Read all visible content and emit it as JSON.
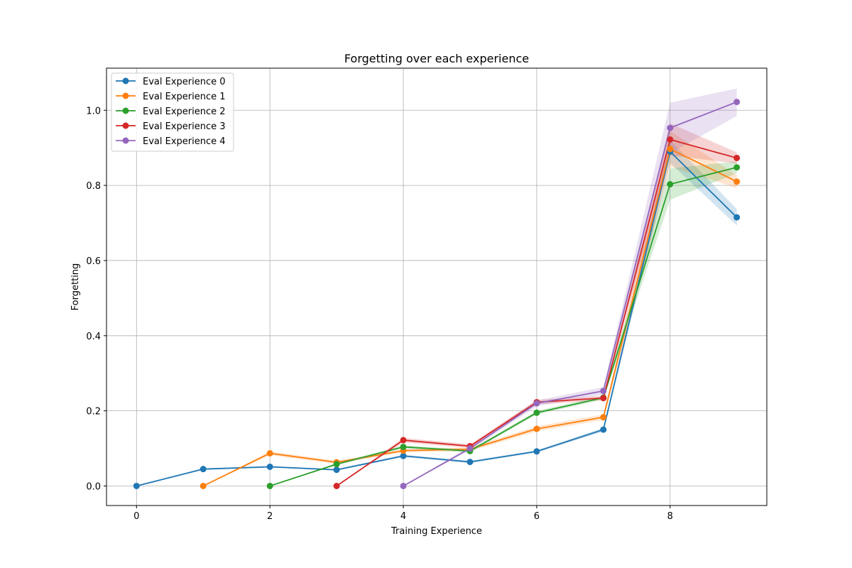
{
  "chart_data": {
    "type": "line",
    "title": "Forgetting over each experience",
    "xlabel": "Training Experience",
    "ylabel": "Forgetting",
    "xlim": [
      -0.45,
      9.45
    ],
    "ylim": [
      -0.052,
      1.112
    ],
    "xticks": [
      0,
      2,
      4,
      6,
      8
    ],
    "yticks": [
      0.0,
      0.2,
      0.4,
      0.6,
      0.8,
      1.0
    ],
    "xtick_labels": [
      "0",
      "2",
      "4",
      "6",
      "8"
    ],
    "ytick_labels": [
      "0.0",
      "0.2",
      "0.4",
      "0.6",
      "0.8",
      "1.0"
    ],
    "grid": true,
    "legend_position": "upper-left",
    "series": [
      {
        "name": "Eval Experience 0",
        "color": "#1f77b4",
        "x": [
          0,
          1,
          2,
          3,
          4,
          5,
          6,
          7,
          8,
          9
        ],
        "y": [
          0.0,
          0.045,
          0.051,
          0.043,
          0.08,
          0.064,
          0.092,
          0.15,
          0.89,
          0.715
        ],
        "lower": [
          0.0,
          0.043,
          0.049,
          0.041,
          0.077,
          0.061,
          0.089,
          0.145,
          0.86,
          0.693
        ],
        "upper": [
          0.0,
          0.047,
          0.053,
          0.045,
          0.083,
          0.067,
          0.095,
          0.155,
          0.92,
          0.737
        ]
      },
      {
        "name": "Eval Experience 1",
        "color": "#ff7f0e",
        "x": [
          1,
          2,
          3,
          4,
          5,
          6,
          7,
          8,
          9
        ],
        "y": [
          0.0,
          0.087,
          0.063,
          0.094,
          0.098,
          0.152,
          0.183,
          0.897,
          0.81
        ],
        "lower": [
          0.0,
          0.082,
          0.059,
          0.09,
          0.093,
          0.145,
          0.176,
          0.85,
          0.793
        ],
        "upper": [
          0.0,
          0.092,
          0.067,
          0.098,
          0.103,
          0.159,
          0.19,
          0.945,
          0.827
        ]
      },
      {
        "name": "Eval Experience 2",
        "color": "#2ca02c",
        "x": [
          2,
          3,
          4,
          5,
          6,
          7,
          8,
          9
        ],
        "y": [
          0.0,
          0.058,
          0.104,
          0.093,
          0.195,
          0.235,
          0.803,
          0.848
        ],
        "lower": [
          0.0,
          0.055,
          0.1,
          0.089,
          0.19,
          0.23,
          0.762,
          0.832
        ],
        "upper": [
          0.0,
          0.061,
          0.108,
          0.097,
          0.2,
          0.24,
          0.845,
          0.864
        ]
      },
      {
        "name": "Eval Experience 3",
        "color": "#d62728",
        "x": [
          3,
          4,
          5,
          6,
          7,
          8,
          9
        ],
        "y": [
          0.0,
          0.122,
          0.106,
          0.223,
          0.234,
          0.922,
          0.873
        ],
        "lower": [
          0.0,
          0.116,
          0.101,
          0.217,
          0.228,
          0.88,
          0.858
        ],
        "upper": [
          0.0,
          0.128,
          0.111,
          0.229,
          0.24,
          0.965,
          0.888
        ]
      },
      {
        "name": "Eval Experience 4",
        "color": "#9467bd",
        "x": [
          4,
          5,
          6,
          7,
          8,
          9
        ],
        "y": [
          0.0,
          0.1,
          0.22,
          0.253,
          0.953,
          1.022
        ],
        "lower": [
          0.0,
          0.095,
          0.212,
          0.243,
          0.885,
          0.985
        ],
        "upper": [
          0.0,
          0.105,
          0.228,
          0.263,
          1.02,
          1.058
        ]
      }
    ]
  }
}
